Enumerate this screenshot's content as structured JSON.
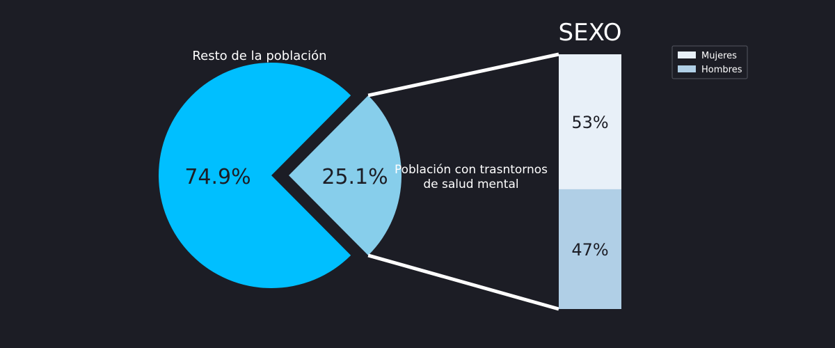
{
  "chart_data": [
    {
      "type": "pie",
      "labels": [
        "Resto de la población",
        "Población con trasntornos de salud mental"
      ],
      "label_lines": {
        "rest": [
          "Resto de la población"
        ],
        "mental": [
          "Población con trasntornos",
          "de salud mental"
        ]
      },
      "values": [
        74.9,
        25.1
      ],
      "value_labels": [
        "74.9%",
        "25.1%"
      ],
      "colors": [
        "#00bfff",
        "#87ceeb"
      ],
      "exploded": "Población con trasntornos de salud mental"
    },
    {
      "type": "bar",
      "stacked": true,
      "title": "SEXO",
      "categories": [
        "Mujeres",
        "Hombres"
      ],
      "values": [
        53,
        47
      ],
      "value_labels": [
        "53%",
        "47%"
      ],
      "colors": [
        "#e8f0f8",
        "#b0cfe6"
      ],
      "legend": [
        "Mujeres",
        "Hombres"
      ],
      "legend_position": "top-right"
    }
  ],
  "colors": {
    "background": "#1c1d25",
    "connector": "#ffffff",
    "text_on_dark": "#ffffff",
    "text_on_light": "#1c1d25"
  }
}
